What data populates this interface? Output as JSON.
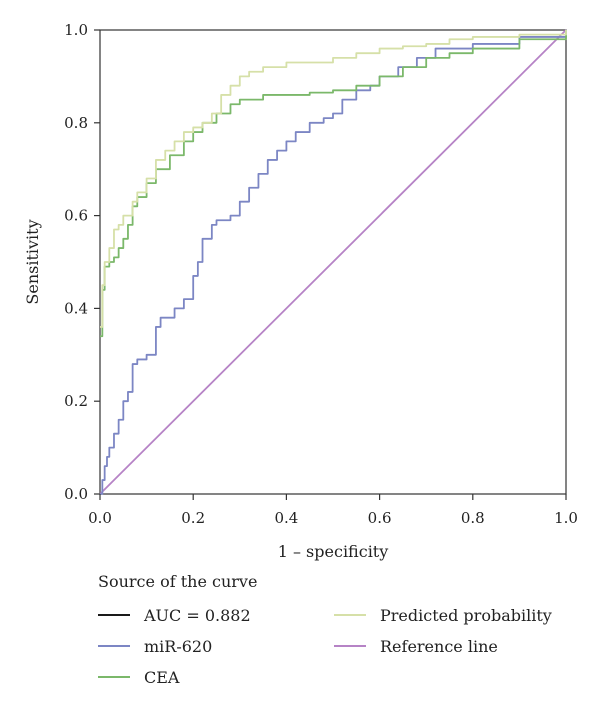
{
  "chart_data": {
    "type": "line",
    "xlabel": "1 – specificity",
    "ylabel": "Sensitivity",
    "xlim": [
      0,
      1
    ],
    "ylim": [
      0,
      1
    ],
    "x_ticks": [
      "0.0",
      "0.2",
      "0.4",
      "0.6",
      "0.8",
      "1.0"
    ],
    "y_ticks": [
      "0.0",
      "0.2",
      "0.4",
      "0.6",
      "0.8",
      "1.0"
    ],
    "grid": false,
    "legend_title": "Source of the curve",
    "legend_position": "bottom",
    "series": [
      {
        "name": "AUC = 0.882",
        "color": "#1a1a1a",
        "x": [],
        "y": []
      },
      {
        "name": "miR-620",
        "color": "#7c86c4",
        "x": [
          0,
          0.005,
          0.01,
          0.015,
          0.02,
          0.03,
          0.04,
          0.05,
          0.06,
          0.07,
          0.08,
          0.1,
          0.12,
          0.13,
          0.15,
          0.16,
          0.18,
          0.2,
          0.21,
          0.22,
          0.24,
          0.25,
          0.28,
          0.3,
          0.32,
          0.34,
          0.36,
          0.38,
          0.4,
          0.42,
          0.45,
          0.48,
          0.5,
          0.52,
          0.55,
          0.58,
          0.6,
          0.64,
          0.68,
          0.72,
          0.8,
          0.9,
          1.0
        ],
        "y": [
          0,
          0.03,
          0.06,
          0.08,
          0.1,
          0.13,
          0.16,
          0.2,
          0.22,
          0.28,
          0.29,
          0.3,
          0.36,
          0.38,
          0.38,
          0.4,
          0.42,
          0.47,
          0.5,
          0.55,
          0.58,
          0.59,
          0.6,
          0.63,
          0.66,
          0.69,
          0.72,
          0.74,
          0.76,
          0.78,
          0.8,
          0.81,
          0.82,
          0.85,
          0.87,
          0.88,
          0.9,
          0.92,
          0.94,
          0.96,
          0.97,
          0.985,
          1.0
        ]
      },
      {
        "name": "CEA",
        "color": "#7bb86a",
        "x": [
          0,
          0.005,
          0.01,
          0.02,
          0.03,
          0.04,
          0.05,
          0.06,
          0.07,
          0.08,
          0.1,
          0.12,
          0.15,
          0.18,
          0.2,
          0.22,
          0.25,
          0.28,
          0.3,
          0.35,
          0.4,
          0.45,
          0.5,
          0.55,
          0.6,
          0.65,
          0.7,
          0.75,
          0.8,
          0.9,
          1.0
        ],
        "y": [
          0.34,
          0.44,
          0.49,
          0.5,
          0.51,
          0.53,
          0.55,
          0.58,
          0.62,
          0.64,
          0.67,
          0.7,
          0.73,
          0.76,
          0.78,
          0.8,
          0.82,
          0.84,
          0.85,
          0.86,
          0.86,
          0.865,
          0.87,
          0.88,
          0.9,
          0.92,
          0.94,
          0.95,
          0.96,
          0.98,
          1.0
        ]
      },
      {
        "name": "Predicted probability",
        "color": "#d6e0a8",
        "x": [
          0,
          0.005,
          0.01,
          0.02,
          0.03,
          0.04,
          0.05,
          0.06,
          0.07,
          0.08,
          0.1,
          0.12,
          0.14,
          0.16,
          0.18,
          0.2,
          0.22,
          0.24,
          0.26,
          0.28,
          0.3,
          0.32,
          0.35,
          0.4,
          0.45,
          0.5,
          0.55,
          0.6,
          0.65,
          0.7,
          0.75,
          0.8,
          0.9,
          1.0
        ],
        "y": [
          0.36,
          0.45,
          0.5,
          0.53,
          0.57,
          0.58,
          0.6,
          0.6,
          0.63,
          0.65,
          0.68,
          0.72,
          0.74,
          0.76,
          0.78,
          0.79,
          0.8,
          0.82,
          0.86,
          0.88,
          0.9,
          0.91,
          0.92,
          0.93,
          0.93,
          0.94,
          0.95,
          0.96,
          0.965,
          0.97,
          0.98,
          0.985,
          0.99,
          1.0
        ]
      },
      {
        "name": "Reference line",
        "color": "#b683c6",
        "x": [
          0,
          1
        ],
        "y": [
          0,
          1
        ]
      }
    ]
  }
}
